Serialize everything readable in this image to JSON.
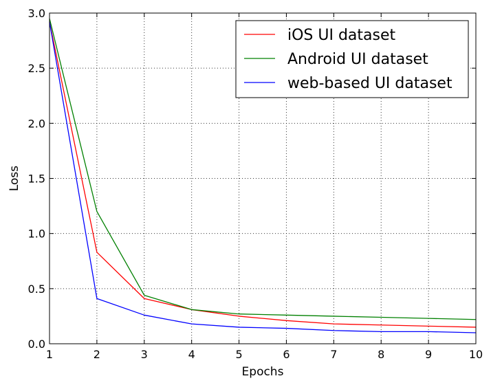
{
  "chart_data": {
    "type": "line",
    "title": "",
    "xlabel": "Epochs",
    "ylabel": "Loss",
    "xlim": [
      1,
      10
    ],
    "ylim": [
      0.0,
      3.0
    ],
    "x": [
      1,
      2,
      3,
      4,
      5,
      6,
      7,
      8,
      9,
      10
    ],
    "xticks": [
      "1",
      "2",
      "3",
      "4",
      "5",
      "6",
      "7",
      "8",
      "9",
      "10"
    ],
    "yticks": [
      "0.0",
      "0.5",
      "1.0",
      "1.5",
      "2.0",
      "2.5",
      "3.0"
    ],
    "grid": true,
    "legend_position": "top-right",
    "series": [
      {
        "name": "iOS UI dataset",
        "color": "#ff0000",
        "values": [
          2.92,
          0.83,
          0.41,
          0.31,
          0.25,
          0.21,
          0.18,
          0.17,
          0.16,
          0.15
        ]
      },
      {
        "name": "Android UI dataset",
        "color": "#008000",
        "values": [
          2.95,
          1.2,
          0.44,
          0.31,
          0.27,
          0.26,
          0.25,
          0.24,
          0.23,
          0.22
        ]
      },
      {
        "name": "web-based UI dataset",
        "color": "#0000ff",
        "values": [
          2.92,
          0.41,
          0.26,
          0.18,
          0.15,
          0.14,
          0.12,
          0.11,
          0.11,
          0.1
        ]
      }
    ]
  }
}
